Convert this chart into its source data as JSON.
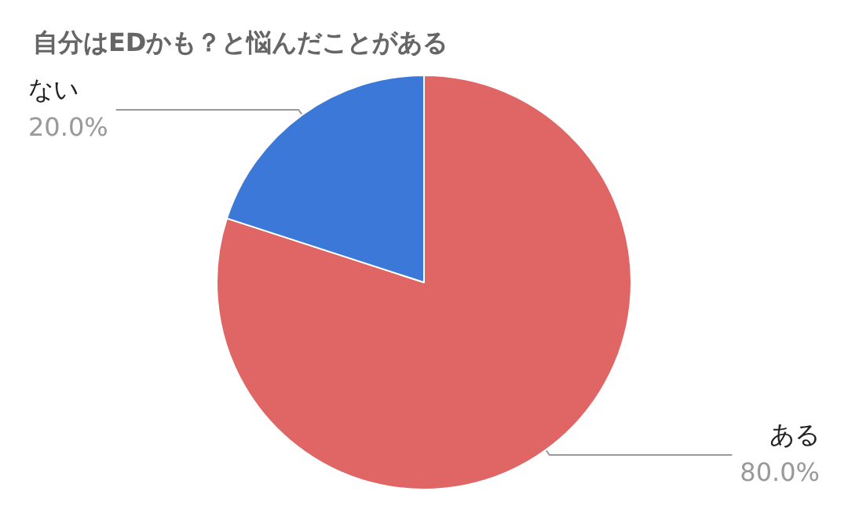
{
  "chart_data": {
    "type": "pie",
    "title": "自分はEDかも？と悩んだことがある",
    "categories": [
      "ある",
      "ない"
    ],
    "values": [
      80,
      20
    ],
    "value_labels": [
      "80.0%",
      "20.0%"
    ],
    "colors": [
      "#e06666",
      "#3c78d8"
    ],
    "legend": false
  }
}
